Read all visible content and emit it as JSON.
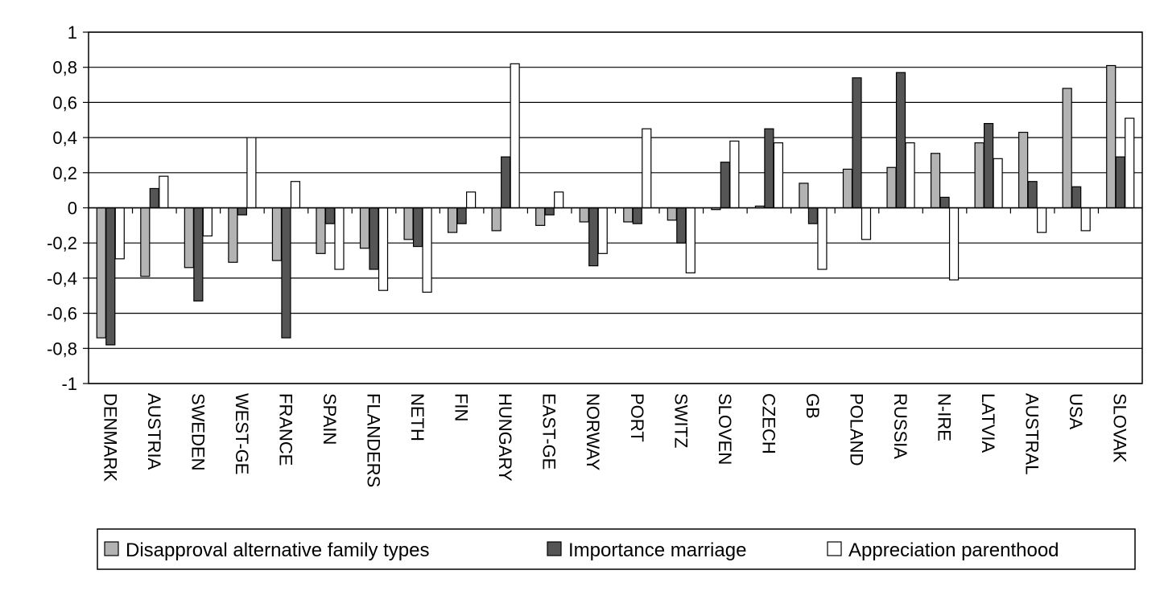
{
  "chart_data": {
    "type": "bar",
    "title": "",
    "xlabel": "",
    "ylabel": "",
    "ylim": [
      -1,
      1
    ],
    "yticks": [
      "1",
      "0,8",
      "0,6",
      "0,4",
      "0,2",
      "0",
      "-0,2",
      "-0,4",
      "-0,6",
      "-0,8",
      "-1"
    ],
    "grid": true,
    "legend_position": "bottom",
    "categories": [
      "DENMARK",
      "AUSTRIA",
      "SWEDEN",
      "WEST-GE",
      "FRANCE",
      "SPAIN",
      "FLANDERS",
      "NETH",
      "FIN",
      "HUNGARY",
      "EAST-GE",
      "NORWAY",
      "PORT",
      "SWITZ",
      "SLOVEN",
      "CZECH",
      "GB",
      "POLAND",
      "RUSSIA",
      "N-IRE",
      "LATVIA",
      "AUSTRAL",
      "USA",
      "SLOVAK"
    ],
    "series": [
      {
        "name": "Disapproval alternative family types",
        "color": "#b3b3b3",
        "values": [
          -0.74,
          -0.39,
          -0.34,
          -0.31,
          -0.3,
          -0.26,
          -0.23,
          -0.18,
          -0.14,
          -0.13,
          -0.1,
          -0.08,
          -0.08,
          -0.07,
          -0.01,
          0.01,
          0.14,
          0.22,
          0.23,
          0.31,
          0.37,
          0.43,
          0.68,
          0.81
        ]
      },
      {
        "name": "Importance marriage",
        "color": "#555555",
        "values": [
          -0.78,
          0.11,
          -0.53,
          -0.04,
          -0.74,
          -0.09,
          -0.35,
          -0.22,
          -0.09,
          0.29,
          -0.04,
          -0.33,
          -0.09,
          -0.2,
          0.26,
          0.45,
          -0.09,
          0.74,
          0.77,
          0.06,
          0.48,
          0.15,
          0.12,
          0.29
        ]
      },
      {
        "name": "Appreciation parenthood",
        "color": "#ffffff",
        "values": [
          -0.29,
          0.18,
          -0.16,
          0.4,
          0.15,
          -0.35,
          -0.47,
          -0.48,
          0.09,
          0.82,
          0.09,
          -0.26,
          0.45,
          -0.37,
          0.38,
          0.37,
          -0.35,
          -0.18,
          0.37,
          -0.41,
          0.28,
          -0.14,
          -0.13,
          0.51
        ]
      }
    ]
  }
}
